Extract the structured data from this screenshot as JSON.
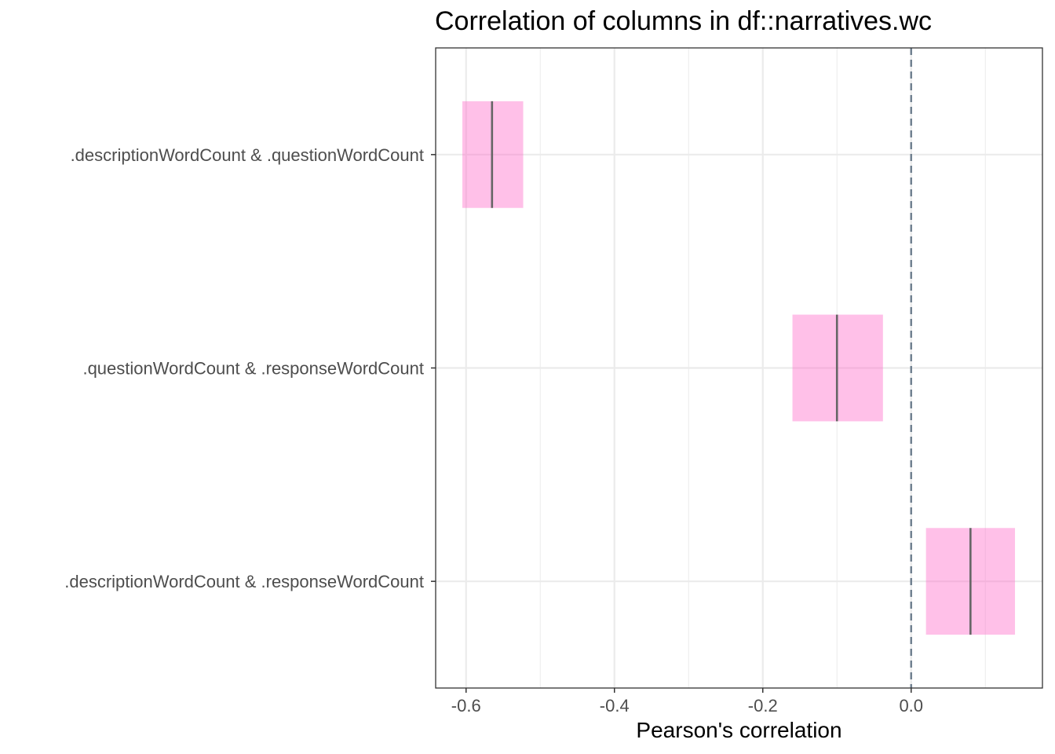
{
  "chart_data": {
    "type": "crossbar",
    "title": "Correlation of columns in df::narratives.wc",
    "xlabel": "Pearson's correlation",
    "ylabel": "",
    "xlim": [
      -0.641,
      0.177
    ],
    "x_ticks": [
      {
        "value": -0.6,
        "label": "-0.6"
      },
      {
        "value": -0.4,
        "label": "-0.4"
      },
      {
        "value": -0.2,
        "label": "-0.2"
      },
      {
        "value": 0.0,
        "label": "0.0"
      }
    ],
    "x_minor_ticks": [
      -0.5,
      -0.3,
      -0.1,
      0.1
    ],
    "reference_line": {
      "value": 0.0,
      "style": "dashed",
      "color": "#708090"
    },
    "grid": true,
    "legend": "none",
    "colors": {
      "box_fill": "#ff69c8",
      "box_fill_opacity": 0.42,
      "estimate_line": "#666666"
    },
    "categories": [
      ".descriptionWordCount & .questionWordCount",
      ".questionWordCount & .responseWordCount",
      ".descriptionWordCount & .responseWordCount"
    ],
    "estimates": [
      -0.565,
      -0.1,
      0.08
    ],
    "ci_lower": [
      -0.605,
      -0.16,
      0.02
    ],
    "ci_upper": [
      -0.523,
      -0.038,
      0.14
    ]
  }
}
